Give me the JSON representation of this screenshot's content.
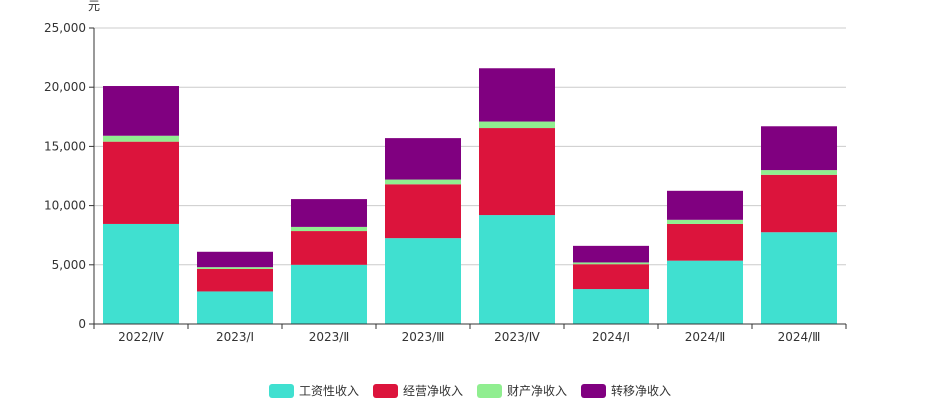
{
  "chart_data": {
    "type": "bar",
    "stacked": true,
    "title": "",
    "xlabel": "",
    "ylabel": "元",
    "ylim": [
      0,
      25000
    ],
    "yticks": [
      0,
      5000,
      10000,
      15000,
      20000,
      25000
    ],
    "ytick_labels": [
      "0",
      "5,000",
      "10,000",
      "15,000",
      "20,000",
      "25,000"
    ],
    "categories": [
      "2022/Ⅳ",
      "2023/Ⅰ",
      "2023/Ⅱ",
      "2023/Ⅲ",
      "2023/Ⅳ",
      "2024/Ⅰ",
      "2024/Ⅱ",
      "2024/Ⅲ"
    ],
    "grid": true,
    "legend_position": "bottom-center",
    "series": [
      {
        "name": "工资性收入",
        "color": "#40e0d0",
        "values": [
          8450,
          2750,
          5000,
          7250,
          9200,
          2950,
          5350,
          7750
        ]
      },
      {
        "name": "经营净收入",
        "color": "#dc143c",
        "values": [
          6950,
          1900,
          2850,
          4550,
          7350,
          2100,
          3100,
          4850
        ]
      },
      {
        "name": "财产净收入",
        "color": "#90ee90",
        "values": [
          500,
          150,
          350,
          400,
          550,
          150,
          350,
          400
        ]
      },
      {
        "name": "转移净收入",
        "color": "#800080",
        "values": [
          4200,
          1300,
          2350,
          3500,
          4500,
          1400,
          2450,
          3700
        ]
      }
    ]
  }
}
